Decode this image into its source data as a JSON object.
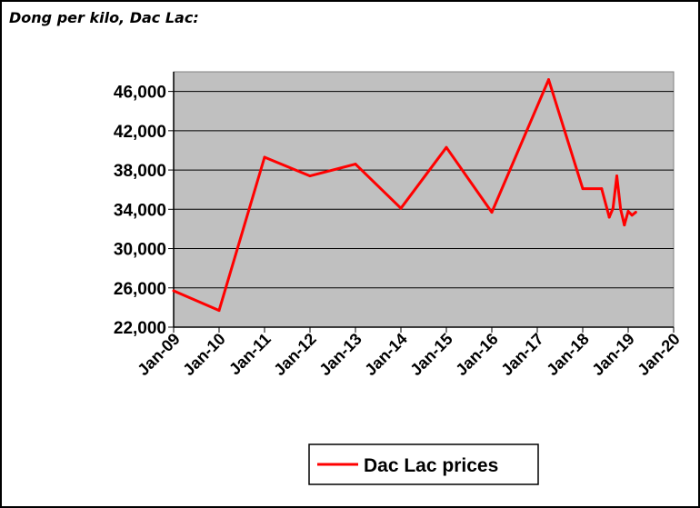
{
  "chart_data": {
    "type": "line",
    "title": "Dong per kilo, Dac Lac:",
    "xlabel": "",
    "ylabel": "",
    "ylim": [
      22000,
      48000
    ],
    "yticks": [
      22000,
      26000,
      30000,
      34000,
      38000,
      42000,
      46000
    ],
    "ytick_labels": [
      "22,000",
      "26,000",
      "30,000",
      "34,000",
      "38,000",
      "42,000",
      "46,000"
    ],
    "xlim": [
      "2009-01",
      "2020-01"
    ],
    "xtick_labels": [
      "Jan-09",
      "Jan-10",
      "Jan-11",
      "Jan-12",
      "Jan-13",
      "Jan-14",
      "Jan-15",
      "Jan-16",
      "Jan-17",
      "Jan-18",
      "Jan-19",
      "Jan-20"
    ],
    "grid": true,
    "legend": "bottom",
    "colors": {
      "line": "#ff0000",
      "plot_bg": "#c0c0c0",
      "grid": "#000000"
    },
    "series": [
      {
        "name": "Dac Lac prices",
        "x": [
          "2009-01",
          "2010-01",
          "2011-01",
          "2012-01",
          "2013-01",
          "2014-01",
          "2015-01",
          "2016-01",
          "2017-04",
          "2018-01",
          "2018-06",
          "2018-08",
          "2018-09",
          "2018-10",
          "2018-11",
          "2018-12",
          "2019-01",
          "2019-02",
          "2019-03"
        ],
        "values": [
          25700,
          23700,
          39300,
          37400,
          38600,
          34100,
          40300,
          33700,
          47200,
          36100,
          36100,
          33200,
          34100,
          37400,
          34000,
          32400,
          33800,
          33400,
          33700
        ]
      }
    ]
  }
}
